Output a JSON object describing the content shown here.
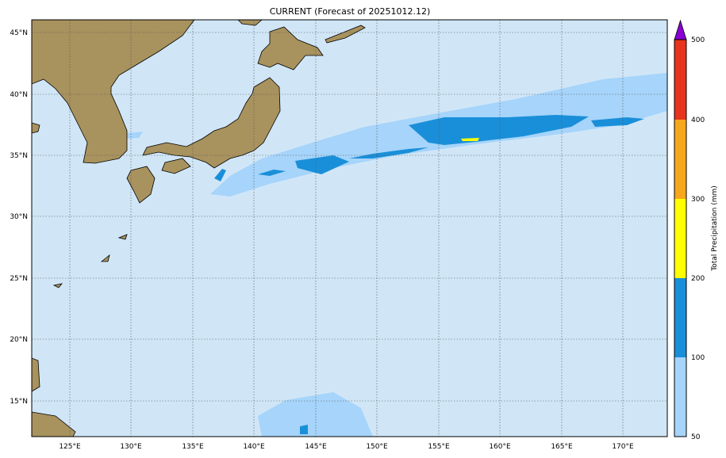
{
  "title": "CURRENT (Forecast of 20251012.12)",
  "map": {
    "region": "Japan and Northwest Pacific",
    "lon_ticks": [
      "125°E",
      "130°E",
      "135°E",
      "140°E",
      "145°E",
      "150°E",
      "155°E",
      "160°E",
      "165°E",
      "170°E"
    ],
    "lat_ticks": [
      "45°N",
      "40°N",
      "35°N",
      "30°N",
      "25°N",
      "20°N",
      "15°N"
    ],
    "ocean_color": "#d0e6f7",
    "land_colors": [
      "#3f9a3a",
      "#a8925e",
      "#c9b384"
    ]
  },
  "colorbar": {
    "label": "Total Precipitation (mm)",
    "ticks": [
      "50",
      "100",
      "200",
      "300",
      "400",
      "500"
    ],
    "colors": [
      "#a6d4fa",
      "#1a8fd9",
      "#ffff00",
      "#f7a71c",
      "#e8341c"
    ],
    "extend_color": "#8a00d4"
  }
}
